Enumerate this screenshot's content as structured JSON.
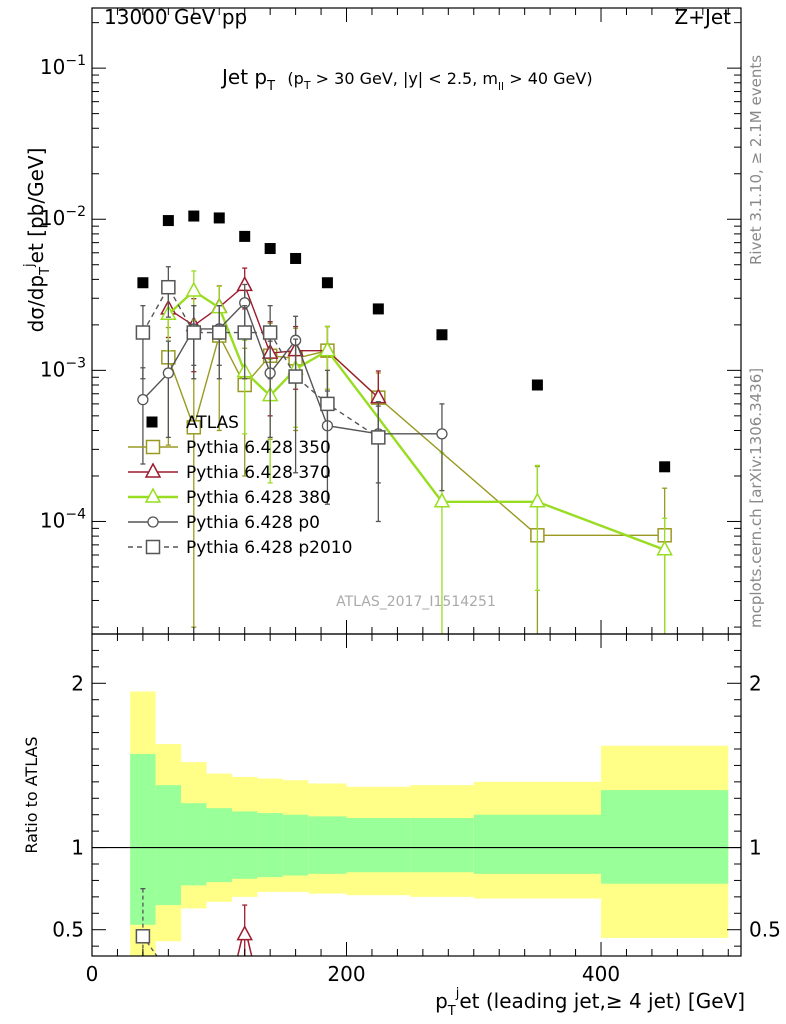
{
  "header": {
    "left": "13000 GeV pp",
    "right": "Z+Jet"
  },
  "side": {
    "rivet": "Rivet 3.1.10, ≥ 2.1M events",
    "mcplots": "mcplots.cern.ch [arXiv:1306.3436]"
  },
  "chart_data": [
    {
      "type": "scatter",
      "panel": "main",
      "title_main": "Jet p",
      "title_sub": "T",
      "title_rest": "(p",
      "title_rest_sub": "T",
      "title_rest2": " > 30 GeV, |y| < 2.5, m",
      "title_rest2_sub": "ll",
      "title_rest3": " > 40 GeV)",
      "analysis_label": "ATLAS_2017_I1514251",
      "ylabel": "dσ/dp",
      "ylabel_sub": "T",
      "ylabel_sup": "j",
      "ylabel_rest": "et [pb/GeV]",
      "yscale": "log",
      "xlim": [
        0,
        510
      ],
      "ylim": [
        1.8e-05,
        0.25
      ],
      "y_ticks": [
        {
          "value": 0.0001,
          "base": "10",
          "exp": "−4"
        },
        {
          "value": 0.001,
          "base": "10",
          "exp": "−3"
        },
        {
          "value": 0.01,
          "base": "10",
          "exp": "−2"
        },
        {
          "value": 0.1,
          "base": "10",
          "exp": "−1"
        }
      ],
      "legend_position": "middle-left",
      "data": {
        "name": "ATLAS",
        "color": "#000000",
        "x": [
          40,
          60,
          80,
          100,
          120,
          140,
          160,
          185,
          225,
          275,
          350,
          450
        ],
        "y": [
          0.0038,
          0.0098,
          0.0105,
          0.0102,
          0.0077,
          0.0064,
          0.0055,
          0.0038,
          0.00255,
          0.00172,
          0.0008,
          0.00023
        ]
      },
      "series": [
        {
          "name": "Pythia 6.428 350",
          "color": "#9a9a22",
          "marker": "square",
          "dashed": false,
          "x": [
            60,
            80,
            100,
            120,
            140,
            160,
            185,
            225,
            350,
            450
          ],
          "y": [
            0.00122,
            0.00042,
            0.0017,
            0.0008,
            0.00125,
            0.0012,
            0.00135,
            0.00066,
            8.1e-05,
            8.1e-05
          ],
          "err_hi": [
            0.0007,
            0.0015,
            0.001,
            0.0006,
            0.0008,
            0.0007,
            0.0006,
            0.0003,
            0.00015,
            8.5e-05
          ],
          "err_lo": [
            0.0009,
            0.0004,
            0.0013,
            0.0006,
            0.0009,
            0.0008,
            0.0007,
            0.0003,
            7e-05,
            7e-05
          ]
        },
        {
          "name": "Pythia 6.428 370",
          "color": "#9b1c2e",
          "marker": "triangle",
          "dashed": false,
          "x": [
            60,
            80,
            100,
            120,
            140,
            160,
            185,
            225
          ],
          "y": [
            0.00255,
            0.00198,
            0.00262,
            0.00365,
            0.0013,
            0.00135,
            0.00135,
            0.00066
          ],
          "err_hi": [
            0.0009,
            0.001,
            0.001,
            0.0011,
            0.0008,
            0.0006,
            0.0006,
            0.00033
          ],
          "err_lo": [
            0.0009,
            0.001,
            0.001,
            0.0011,
            0.0008,
            0.0006,
            0.0006,
            0.00033
          ]
        },
        {
          "name": "Pythia 6.428 380",
          "color": "#99dd22",
          "marker": "triangle",
          "dashed": false,
          "x": [
            60,
            80,
            100,
            120,
            140,
            160,
            185,
            275,
            350,
            450
          ],
          "y": [
            0.00235,
            0.00335,
            0.0026,
            0.00098,
            0.00068,
            0.00102,
            0.00135,
            0.000135,
            0.000135,
            6.5e-05
          ],
          "err_hi": [
            0.001,
            0.0012,
            0.001,
            0.0006,
            0.0005,
            0.0006,
            0.0006,
            0.00015,
            0.0001,
            4e-05
          ],
          "err_lo": [
            0.001,
            0.0012,
            0.001,
            0.0006,
            0.0005,
            0.0006,
            0.0006,
            0.00013,
            0.0001,
            5e-05
          ]
        },
        {
          "name": "Pythia 6.428 p0",
          "color": "#555555",
          "marker": "circle",
          "dashed": false,
          "x": [
            40,
            60,
            80,
            100,
            120,
            140,
            160,
            185,
            225,
            275
          ],
          "y": [
            0.00064,
            0.00096,
            0.00188,
            0.00188,
            0.0028,
            0.00096,
            0.00158,
            0.00043,
            0.00038,
            0.00038
          ],
          "err_hi": [
            0.0004,
            0.0006,
            0.0008,
            0.0008,
            0.0009,
            0.0006,
            0.0007,
            0.0003,
            0.0002,
            0.00022
          ],
          "err_lo": [
            0.0004,
            0.0006,
            0.0008,
            0.0008,
            0.0009,
            0.0006,
            0.0007,
            0.0003,
            0.0002,
            0.00022
          ]
        },
        {
          "name": "Pythia 6.428 p2010",
          "color": "#555555",
          "marker": "square",
          "dashed": true,
          "x": [
            40,
            60,
            80,
            100,
            120,
            140,
            160,
            185,
            225
          ],
          "y": [
            0.00178,
            0.00355,
            0.00178,
            0.00178,
            0.00178,
            0.00178,
            0.00091,
            0.0006,
            0.00036
          ],
          "err_hi": [
            0.0009,
            0.0013,
            0.0009,
            0.0009,
            0.0009,
            0.0009,
            0.0007,
            0.0004,
            0.00026
          ],
          "err_lo": [
            0.0009,
            0.0013,
            0.0009,
            0.0009,
            0.0009,
            0.0009,
            0.0007,
            0.0004,
            0.00026
          ]
        }
      ]
    },
    {
      "type": "area",
      "panel": "ratio",
      "ylabel": "Ratio to ATLAS",
      "xlabel": "p",
      "xlabel_sub": "T",
      "xlabel_sup": "j",
      "xlabel_rest": "et (leading jet,≥ 4 jet) [GeV]",
      "xlim": [
        0,
        510
      ],
      "ylim": [
        0.34,
        2.3
      ],
      "x_ticks": [
        0,
        200,
        400
      ],
      "y_ticks": [
        0.5,
        1,
        2
      ],
      "bins": [
        [
          30,
          50
        ],
        [
          50,
          70
        ],
        [
          70,
          90
        ],
        [
          90,
          110
        ],
        [
          110,
          130
        ],
        [
          130,
          150
        ],
        [
          150,
          170
        ],
        [
          170,
          200
        ],
        [
          200,
          250
        ],
        [
          250,
          300
        ],
        [
          300,
          400
        ],
        [
          400,
          500
        ]
      ],
      "band_stat": {
        "color": "#99ff99",
        "lo": [
          0.53,
          0.65,
          0.77,
          0.79,
          0.81,
          0.82,
          0.83,
          0.84,
          0.85,
          0.85,
          0.84,
          0.78
        ],
        "hi": [
          1.57,
          1.38,
          1.27,
          1.24,
          1.22,
          1.21,
          1.2,
          1.19,
          1.18,
          1.18,
          1.2,
          1.35
        ]
      },
      "band_total": {
        "color": "#ffff88",
        "lo": [
          0.3,
          0.43,
          0.63,
          0.67,
          0.7,
          0.73,
          0.73,
          0.72,
          0.71,
          0.7,
          0.69,
          0.45
        ],
        "hi": [
          1.95,
          1.63,
          1.52,
          1.45,
          1.43,
          1.42,
          1.41,
          1.39,
          1.37,
          1.38,
          1.4,
          1.62
        ]
      },
      "ratio_points": [
        {
          "series": "Pythia 6.428 p2010",
          "color": "#555555",
          "marker": "square",
          "dashed": true,
          "x": 40,
          "y": 0.46,
          "err_hi": 0.29,
          "err_lo": 0.25
        },
        {
          "series": "Pythia 6.428 370",
          "color": "#9b1c2e",
          "marker": "triangle",
          "dashed": false,
          "x": 120,
          "y": 0.47,
          "err_hi": 0.18,
          "err_lo": 0.2
        }
      ]
    }
  ]
}
